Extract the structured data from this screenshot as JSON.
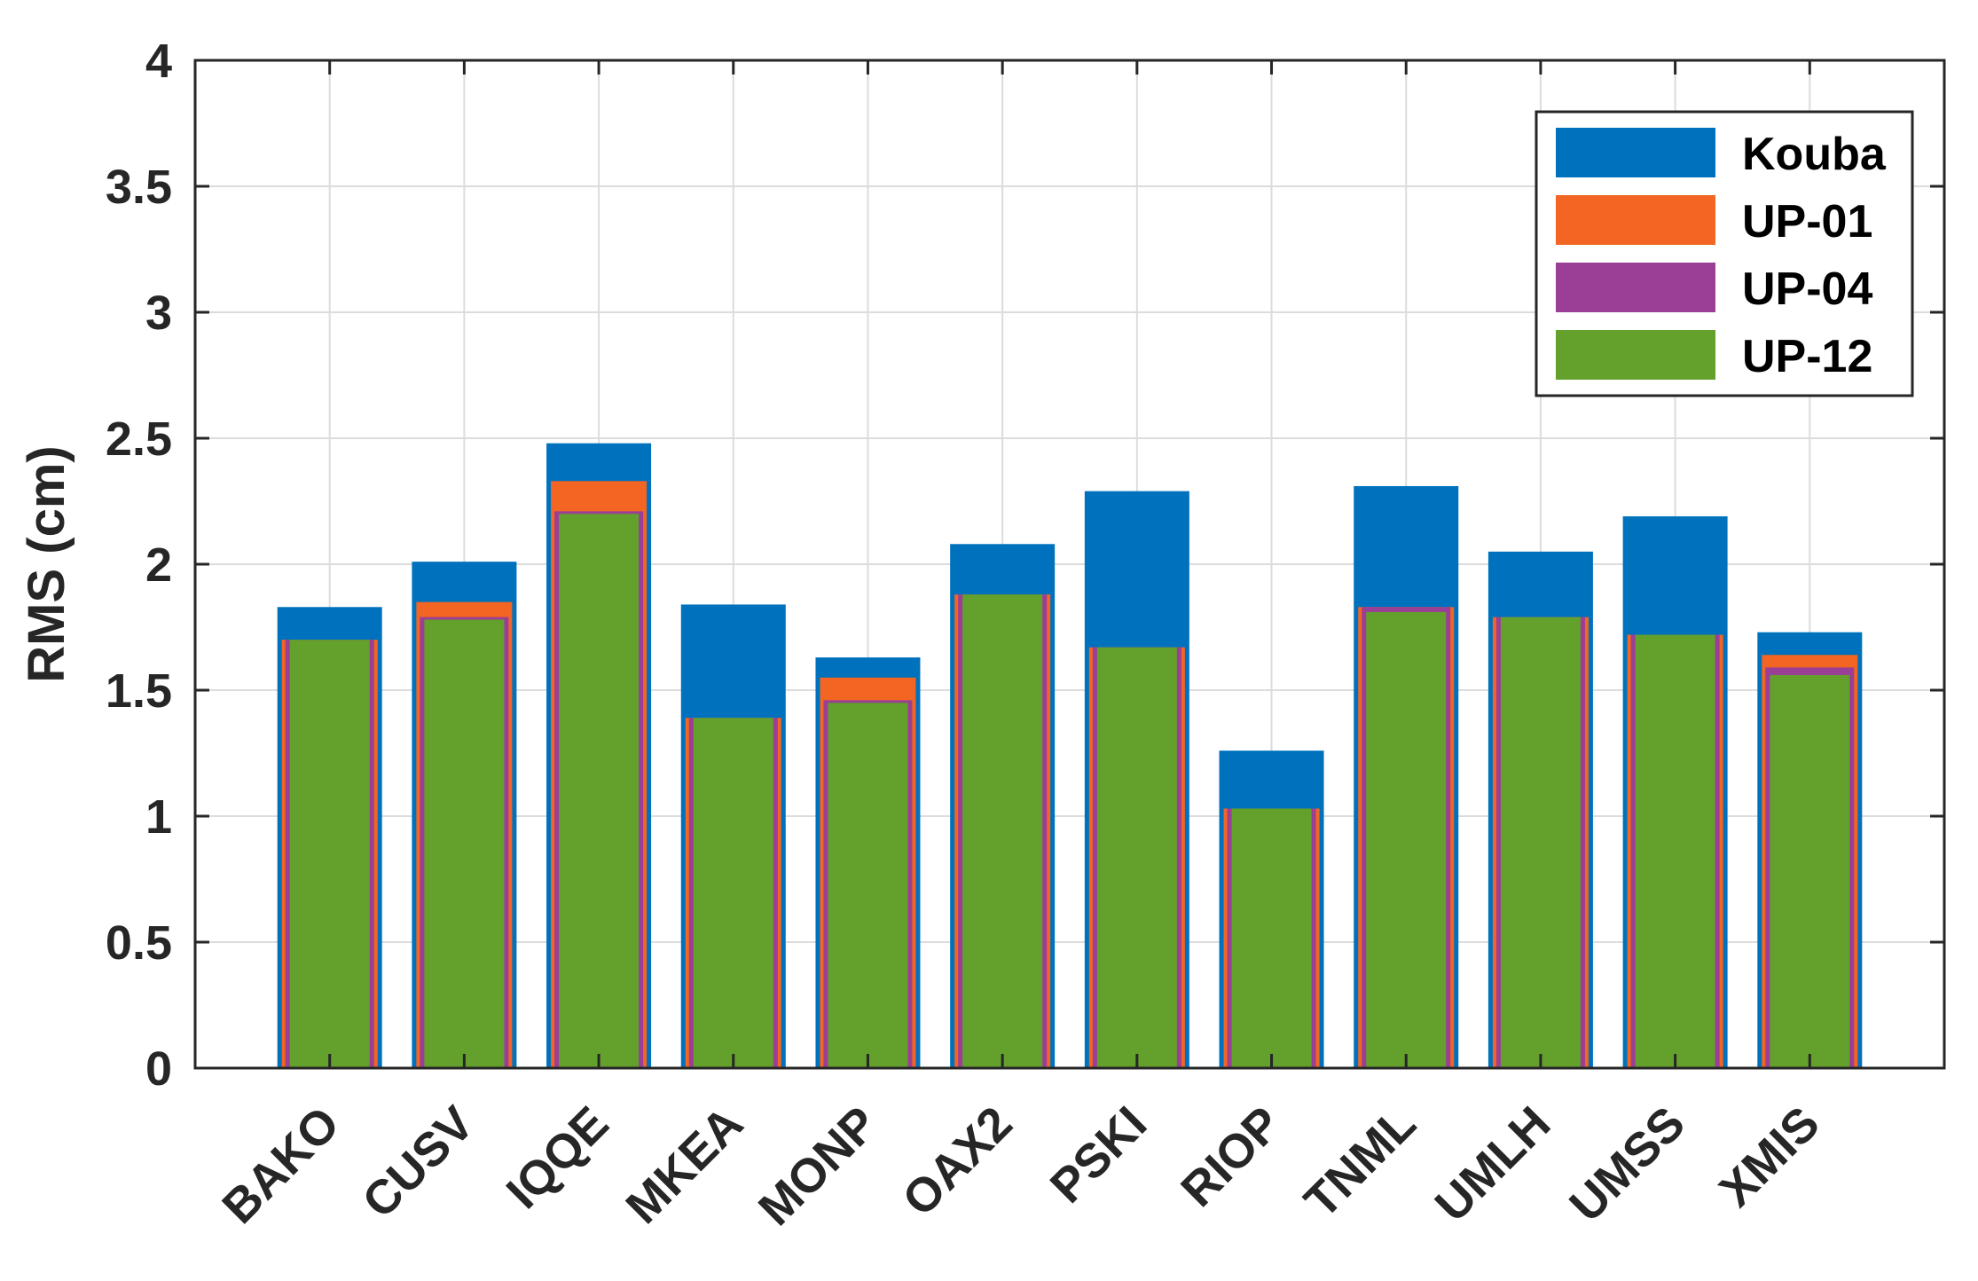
{
  "chart_data": {
    "type": "bar",
    "title": "",
    "xlabel": "",
    "ylabel": "RMS (cm)",
    "ylim": [
      0,
      4
    ],
    "yticks": [
      0,
      0.5,
      1,
      1.5,
      2,
      2.5,
      3,
      3.5,
      4
    ],
    "ytick_labels": [
      "0",
      "0.5",
      "1",
      "1.5",
      "2",
      "2.5",
      "3",
      "3.5",
      "4"
    ],
    "grid": true,
    "legend_position": "top-right",
    "categories": [
      "BAKO",
      "CUSV",
      "IQQE",
      "MKEA",
      "MONP",
      "OAX2",
      "PSKI",
      "RIOP",
      "TNML",
      "UMLH",
      "UMSS",
      "XMIS"
    ],
    "series": [
      {
        "name": "Kouba",
        "color": "#0072BD",
        "values": [
          1.83,
          2.01,
          2.48,
          1.84,
          1.63,
          2.08,
          2.29,
          1.26,
          2.31,
          2.05,
          2.19,
          1.73
        ]
      },
      {
        "name": "UP-01",
        "color": "#F26522",
        "values": [
          1.7,
          1.85,
          2.33,
          1.39,
          1.55,
          1.88,
          1.67,
          1.03,
          1.83,
          1.79,
          1.72,
          1.64
        ]
      },
      {
        "name": "UP-04",
        "color": "#9B3E96",
        "values": [
          1.7,
          1.79,
          2.21,
          1.39,
          1.46,
          1.88,
          1.67,
          1.03,
          1.83,
          1.79,
          1.72,
          1.59
        ]
      },
      {
        "name": "UP-12",
        "color": "#63A02C",
        "values": [
          1.7,
          1.78,
          2.2,
          1.39,
          1.45,
          1.88,
          1.67,
          1.03,
          1.81,
          1.79,
          1.72,
          1.56
        ]
      }
    ]
  }
}
